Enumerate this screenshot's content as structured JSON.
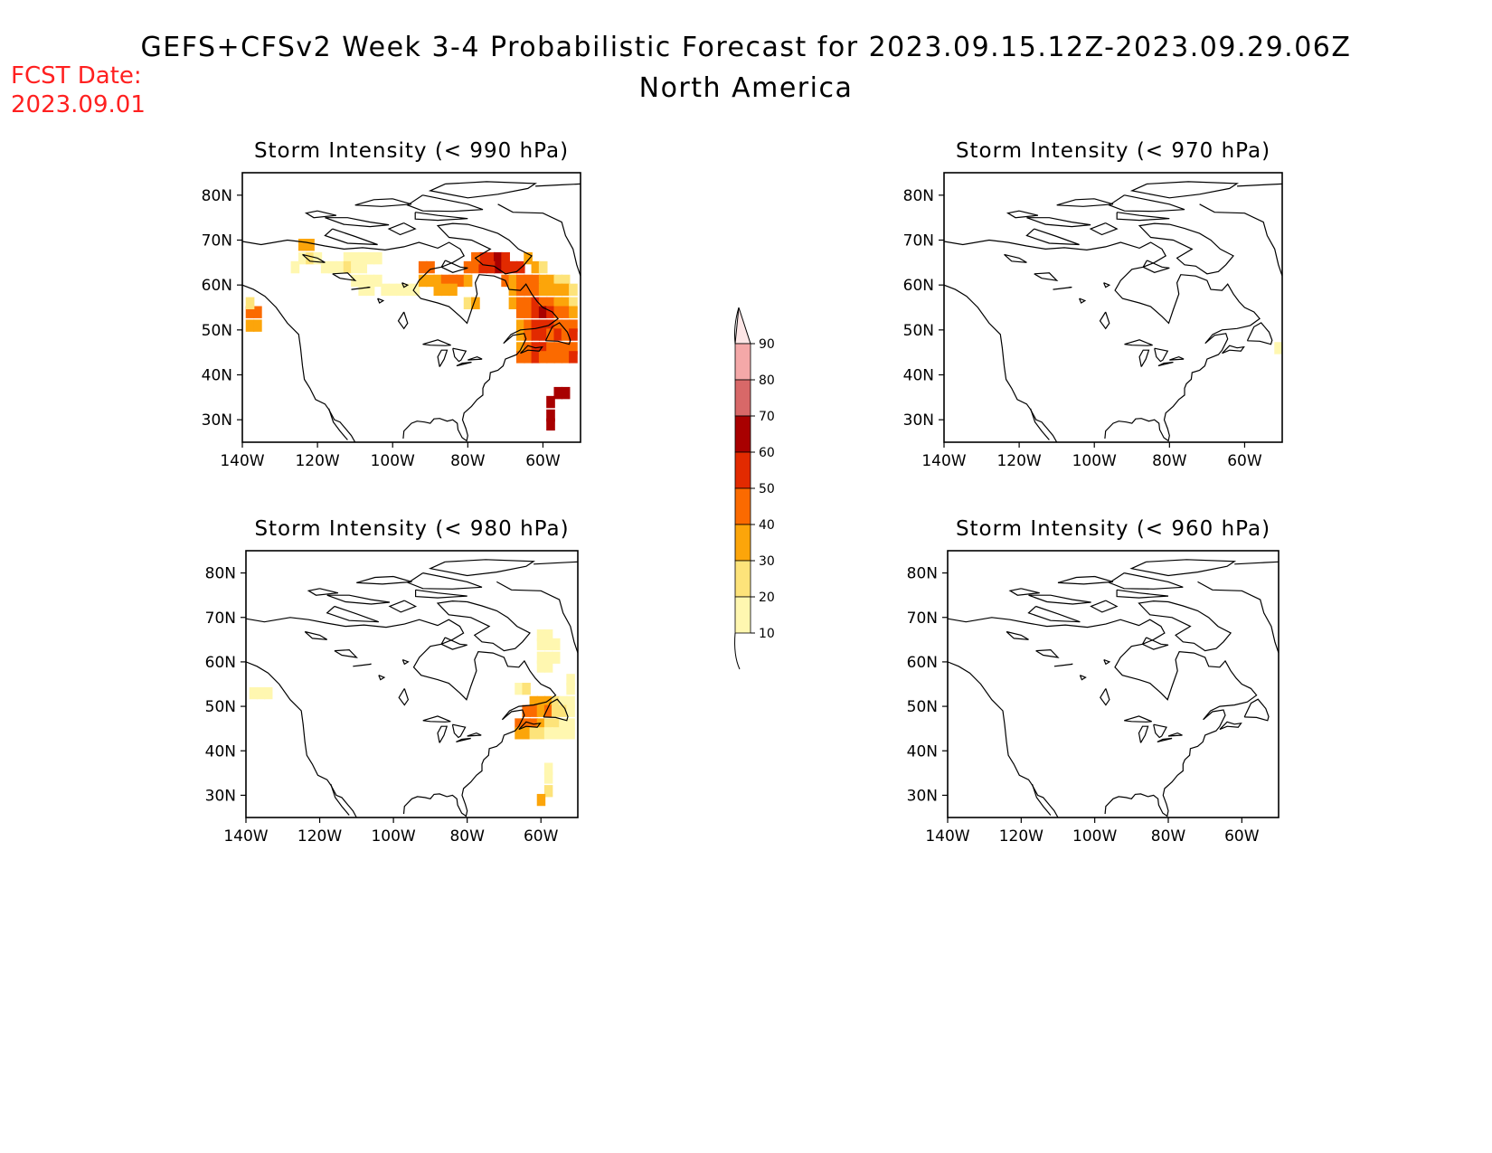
{
  "header": {
    "title": "GEFS+CFSv2 Week 3-4 Probabilistic Forecast for 2023.09.15.12Z-2023.09.29.06Z",
    "subtitle": "North America",
    "fcst_label": "FCST Date:",
    "fcst_date": "2023.09.01",
    "fcst_color": "#ff2020"
  },
  "chart_data": {
    "type": "heatmap",
    "units": "percent probability",
    "colorbar": {
      "levels": [
        10,
        20,
        30,
        40,
        50,
        60,
        70,
        80,
        90
      ],
      "colors": [
        "#fff7b0",
        "#fde37a",
        "#fca50a",
        "#fb6a00",
        "#e22a00",
        "#a80000",
        "#d86868",
        "#f4a8a8",
        "#fde6e6"
      ]
    },
    "panels": [
      {
        "id": "p990",
        "title": "Storm Intensity (< 990 hPa)",
        "xticks": [
          "140W",
          "120W",
          "100W",
          "80W",
          "60W"
        ],
        "yticks": [
          "80N",
          "70N",
          "60N",
          "50N",
          "40N",
          "30N"
        ],
        "xlim": [
          -140,
          -50
        ],
        "ylim": [
          25,
          85
        ],
        "cells": [
          [
            -138,
            54,
            40
          ],
          [
            -136,
            54,
            45
          ],
          [
            -138,
            51,
            30
          ],
          [
            -136,
            51,
            35
          ],
          [
            -138,
            56,
            25
          ],
          [
            -124,
            69,
            30
          ],
          [
            -122,
            69,
            35
          ],
          [
            -124,
            66,
            15
          ],
          [
            -122,
            66,
            20
          ],
          [
            -120,
            66,
            10
          ],
          [
            -126,
            64,
            10
          ],
          [
            -118,
            64,
            10
          ],
          [
            -116,
            64,
            10
          ],
          [
            -114,
            64,
            10
          ],
          [
            -112,
            66,
            10
          ],
          [
            -110,
            66,
            15
          ],
          [
            -108,
            66,
            10
          ],
          [
            -112,
            64,
            20
          ],
          [
            -110,
            64,
            15
          ],
          [
            -108,
            64,
            10
          ],
          [
            -106,
            66,
            10
          ],
          [
            -104,
            66,
            10
          ],
          [
            -110,
            61,
            10
          ],
          [
            -108,
            61,
            10
          ],
          [
            -106,
            61,
            15
          ],
          [
            -104,
            61,
            10
          ],
          [
            -102,
            59,
            10
          ],
          [
            -100,
            59,
            10
          ],
          [
            -98,
            59,
            10
          ],
          [
            -96,
            59,
            10
          ],
          [
            -94,
            59,
            10
          ],
          [
            -108,
            59,
            10
          ],
          [
            -106,
            59,
            10
          ],
          [
            -92,
            64,
            40
          ],
          [
            -90,
            64,
            45
          ],
          [
            -92,
            61,
            30
          ],
          [
            -90,
            61,
            35
          ],
          [
            -88,
            61,
            35
          ],
          [
            -86,
            61,
            40
          ],
          [
            -84,
            61,
            40
          ],
          [
            -82,
            61,
            45
          ],
          [
            -80,
            61,
            35
          ],
          [
            -88,
            59,
            30
          ],
          [
            -86,
            59,
            35
          ],
          [
            -84,
            59,
            30
          ],
          [
            -80,
            56,
            25
          ],
          [
            -78,
            56,
            30
          ],
          [
            -80,
            64,
            40
          ],
          [
            -78,
            64,
            45
          ],
          [
            -76,
            64,
            50
          ],
          [
            -74,
            66,
            55
          ],
          [
            -72,
            66,
            60
          ],
          [
            -70,
            66,
            55
          ],
          [
            -68,
            64,
            50
          ],
          [
            -66,
            64,
            55
          ],
          [
            -64,
            66,
            35
          ],
          [
            -76,
            66,
            50
          ],
          [
            -78,
            66,
            45
          ],
          [
            -72,
            64,
            60
          ],
          [
            -70,
            64,
            55
          ],
          [
            -74,
            64,
            50
          ],
          [
            -62,
            64,
            30
          ],
          [
            -60,
            64,
            25
          ],
          [
            -70,
            61,
            40
          ],
          [
            -68,
            61,
            35
          ],
          [
            -66,
            61,
            40
          ],
          [
            -64,
            61,
            45
          ],
          [
            -62,
            61,
            40
          ],
          [
            -60,
            61,
            35
          ],
          [
            -58,
            61,
            30
          ],
          [
            -56,
            61,
            25
          ],
          [
            -54,
            61,
            20
          ],
          [
            -68,
            59,
            35
          ],
          [
            -66,
            59,
            40
          ],
          [
            -64,
            59,
            45
          ],
          [
            -62,
            59,
            40
          ],
          [
            -60,
            59,
            35
          ],
          [
            -58,
            59,
            30
          ],
          [
            -56,
            59,
            35
          ],
          [
            -54,
            59,
            30
          ],
          [
            -52,
            59,
            25
          ],
          [
            -68,
            56,
            35
          ],
          [
            -66,
            56,
            40
          ],
          [
            -64,
            56,
            45
          ],
          [
            -62,
            56,
            50
          ],
          [
            -60,
            56,
            45
          ],
          [
            -58,
            56,
            40
          ],
          [
            -56,
            56,
            35
          ],
          [
            -54,
            56,
            30
          ],
          [
            -52,
            56,
            25
          ],
          [
            -66,
            54,
            40
          ],
          [
            -64,
            54,
            45
          ],
          [
            -62,
            54,
            55
          ],
          [
            -60,
            54,
            60
          ],
          [
            -58,
            54,
            50
          ],
          [
            -56,
            54,
            45
          ],
          [
            -54,
            54,
            40
          ],
          [
            -52,
            54,
            35
          ],
          [
            -66,
            51,
            35
          ],
          [
            -64,
            51,
            45
          ],
          [
            -62,
            51,
            55
          ],
          [
            -60,
            51,
            50
          ],
          [
            -58,
            51,
            55
          ],
          [
            -56,
            51,
            45
          ],
          [
            -54,
            51,
            40
          ],
          [
            -52,
            51,
            45
          ],
          [
            -66,
            49,
            30
          ],
          [
            -64,
            49,
            40
          ],
          [
            -62,
            49,
            55
          ],
          [
            -60,
            49,
            50
          ],
          [
            -58,
            49,
            45
          ],
          [
            -56,
            49,
            50
          ],
          [
            -54,
            49,
            45
          ],
          [
            -52,
            49,
            50
          ],
          [
            -66,
            46,
            35
          ],
          [
            -64,
            46,
            45
          ],
          [
            -62,
            46,
            50
          ],
          [
            -60,
            46,
            55
          ],
          [
            -58,
            46,
            45
          ],
          [
            -56,
            46,
            40
          ],
          [
            -54,
            46,
            45
          ],
          [
            -52,
            46,
            40
          ],
          [
            -66,
            44,
            40
          ],
          [
            -64,
            44,
            45
          ],
          [
            -62,
            44,
            50
          ],
          [
            -60,
            44,
            40
          ],
          [
            -58,
            44,
            45
          ],
          [
            -56,
            44,
            40
          ],
          [
            -54,
            44,
            45
          ],
          [
            -52,
            44,
            50
          ],
          [
            -56,
            36,
            60
          ],
          [
            -54,
            36,
            60
          ],
          [
            -58,
            34,
            60
          ],
          [
            -58,
            31,
            60
          ],
          [
            -58,
            29,
            60
          ]
        ]
      },
      {
        "id": "p970",
        "title": "Storm Intensity (< 970 hPa)",
        "xticks": [
          "140W",
          "120W",
          "100W",
          "80W",
          "60W"
        ],
        "yticks": [
          "80N",
          "70N",
          "60N",
          "50N",
          "40N",
          "30N"
        ],
        "xlim": [
          -140,
          -50
        ],
        "ylim": [
          25,
          85
        ],
        "cells": [
          [
            -51,
            46,
            15
          ]
        ]
      },
      {
        "id": "p980",
        "title": "Storm Intensity (< 980 hPa)",
        "xticks": [
          "140W",
          "120W",
          "100W",
          "80W",
          "60W"
        ],
        "yticks": [
          "80N",
          "70N",
          "60N",
          "50N",
          "40N",
          "30N"
        ],
        "xlim": [
          -140,
          -50
        ],
        "ylim": [
          25,
          85
        ],
        "cells": [
          [
            -138,
            53,
            15
          ],
          [
            -136,
            53,
            15
          ],
          [
            -134,
            53,
            10
          ],
          [
            -60,
            66,
            10
          ],
          [
            -58,
            66,
            10
          ],
          [
            -60,
            64,
            15
          ],
          [
            -58,
            64,
            15
          ],
          [
            -56,
            64,
            10
          ],
          [
            -60,
            61,
            15
          ],
          [
            -58,
            61,
            15
          ],
          [
            -56,
            61,
            10
          ],
          [
            -60,
            59,
            10
          ],
          [
            -58,
            59,
            10
          ],
          [
            -66,
            54,
            15
          ],
          [
            -64,
            54,
            20
          ],
          [
            -52,
            56,
            10
          ],
          [
            -52,
            54,
            10
          ],
          [
            -52,
            51,
            15
          ],
          [
            -62,
            51,
            30
          ],
          [
            -60,
            51,
            35
          ],
          [
            -58,
            51,
            30
          ],
          [
            -56,
            51,
            20
          ],
          [
            -54,
            51,
            15
          ],
          [
            -64,
            49,
            40
          ],
          [
            -62,
            49,
            45
          ],
          [
            -60,
            49,
            35
          ],
          [
            -58,
            49,
            40
          ],
          [
            -56,
            49,
            25
          ],
          [
            -54,
            49,
            20
          ],
          [
            -52,
            49,
            15
          ],
          [
            -66,
            46,
            40
          ],
          [
            -64,
            46,
            45
          ],
          [
            -62,
            46,
            40
          ],
          [
            -60,
            46,
            30
          ],
          [
            -58,
            46,
            25
          ],
          [
            -56,
            46,
            20
          ],
          [
            -54,
            46,
            15
          ],
          [
            -52,
            46,
            10
          ],
          [
            -66,
            44,
            30
          ],
          [
            -64,
            44,
            35
          ],
          [
            -62,
            44,
            25
          ],
          [
            -60,
            44,
            20
          ],
          [
            -58,
            44,
            15
          ],
          [
            -56,
            44,
            10
          ],
          [
            -54,
            44,
            10
          ],
          [
            -52,
            44,
            10
          ],
          [
            -58,
            36,
            15
          ],
          [
            -58,
            34,
            15
          ],
          [
            -58,
            31,
            20
          ],
          [
            -60,
            29,
            30
          ]
        ]
      },
      {
        "id": "p960",
        "title": "Storm Intensity (< 960 hPa)",
        "xticks": [
          "140W",
          "120W",
          "100W",
          "80W",
          "60W"
        ],
        "yticks": [
          "80N",
          "70N",
          "60N",
          "50N",
          "40N",
          "30N"
        ],
        "xlim": [
          -140,
          -50
        ],
        "ylim": [
          25,
          85
        ],
        "cells": []
      }
    ]
  }
}
